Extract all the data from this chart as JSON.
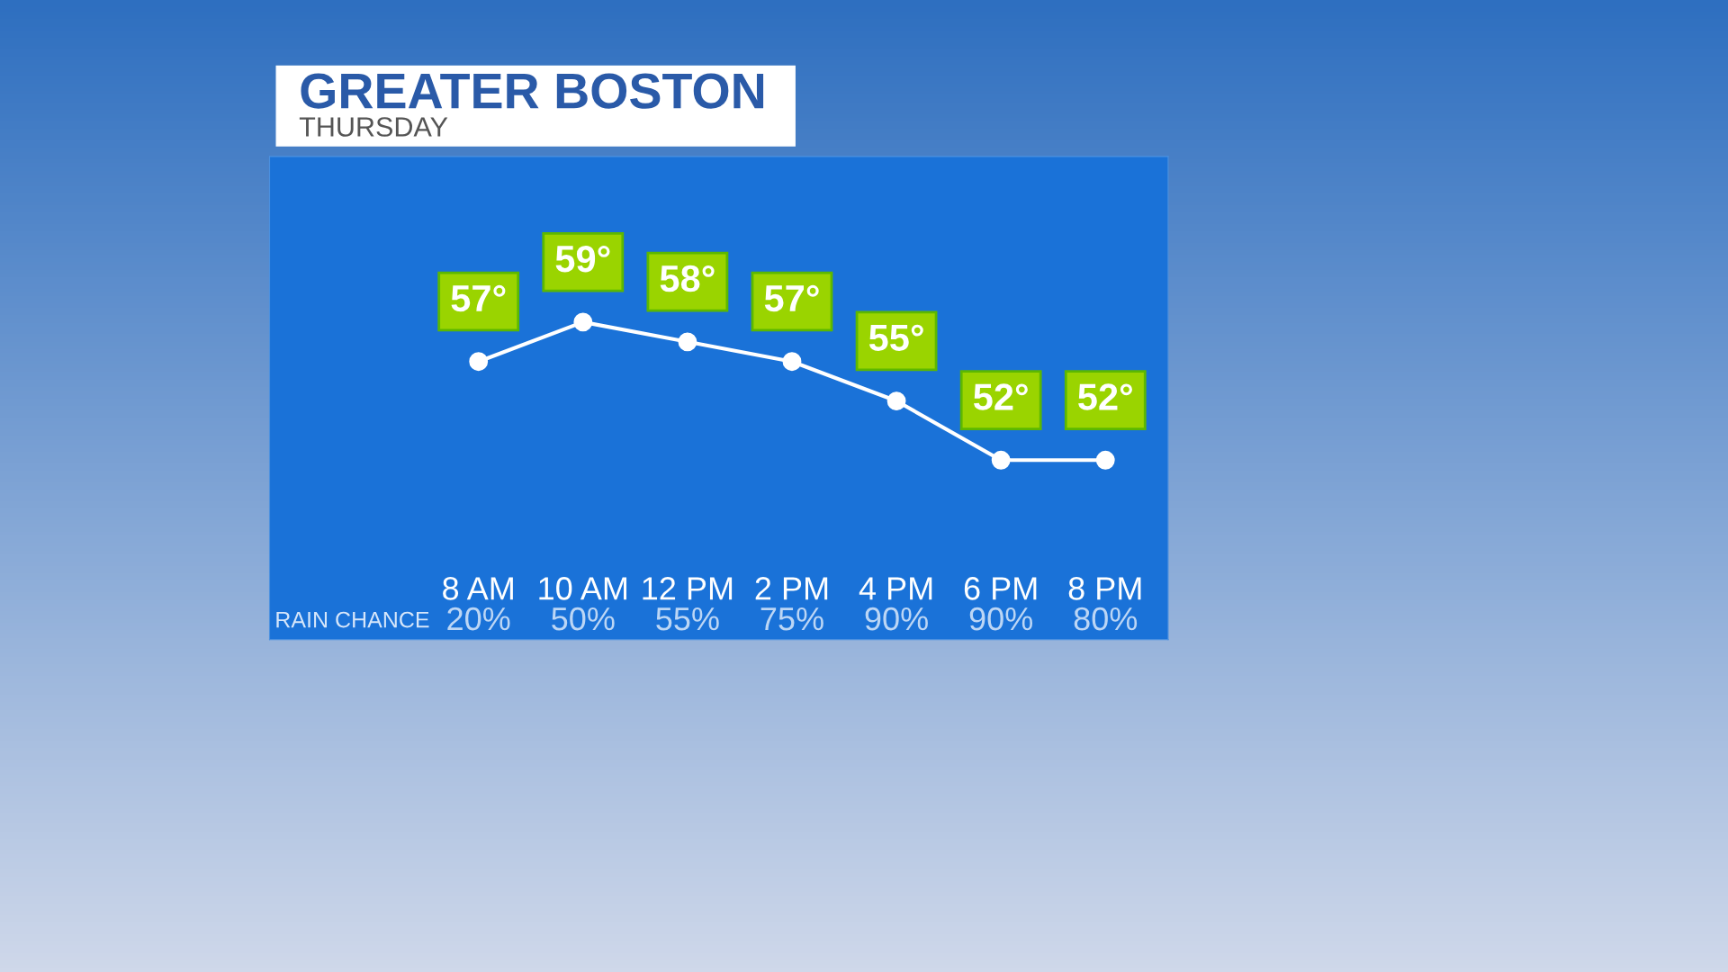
{
  "chart_data": {
    "type": "line",
    "title": "GREATER BOSTON",
    "subtitle": "THURSDAY",
    "categories": [
      "8 AM",
      "10 AM",
      "12 PM",
      "2 PM",
      "4 PM",
      "6 PM",
      "8 PM"
    ],
    "series": [
      {
        "color": "#ffffff",
        "values": [
          57,
          59,
          58,
          57,
          55,
          52,
          52
        ],
        "value_labels": [
          "57°",
          "59°",
          "58°",
          "57°",
          "55°",
          "52°",
          "52°"
        ]
      }
    ],
    "marker": "circle",
    "annotations": [
      "RAIN CHANCE",
      "20%",
      "50%",
      "55%",
      "75%",
      "90%",
      "90%",
      "80%"
    ]
  }
}
